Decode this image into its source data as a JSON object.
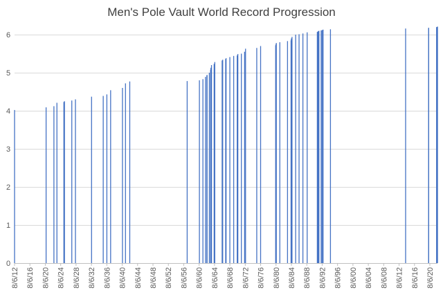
{
  "chart_data": {
    "type": "bar",
    "title": "Men's Pole Vault World Record Progression",
    "xlabel": "",
    "ylabel": "",
    "ylim": [
      0,
      6
    ],
    "yticks": [
      0,
      1,
      2,
      3,
      4,
      5,
      6
    ],
    "xlim": [
      "1912-06-08",
      "2022-06-01"
    ],
    "xticks": [
      "8/6/12",
      "8/6/16",
      "8/6/20",
      "8/6/24",
      "8/6/28",
      "8/6/32",
      "8/6/36",
      "8/6/40",
      "8/6/44",
      "8/6/48",
      "8/6/52",
      "8/6/56",
      "8/6/60",
      "8/6/64",
      "8/6/68",
      "8/6/72",
      "8/6/76",
      "8/6/80",
      "8/6/84",
      "8/6/88",
      "8/6/92",
      "8/6/96",
      "8/6/00",
      "8/6/04",
      "8/6/08",
      "8/6/12",
      "8/6/16",
      "8/6/20"
    ],
    "grid": true,
    "bar_color": "#4472C4",
    "points": [
      [
        "1912-06-08",
        4.02
      ],
      [
        "1920-08-20",
        4.09
      ],
      [
        "1922-09-02",
        4.12
      ],
      [
        "1923-06-14",
        4.21
      ],
      [
        "1925-04-04",
        4.23
      ],
      [
        "1925-06-01",
        4.25
      ],
      [
        "1927-04-27",
        4.27
      ],
      [
        "1928-04-07",
        4.3
      ],
      [
        "1932-06-16",
        4.37
      ],
      [
        "1935-06-29",
        4.39
      ],
      [
        "1936-06-08",
        4.43
      ],
      [
        "1937-06-01",
        4.54
      ],
      [
        "1940-06-29",
        4.6
      ],
      [
        "1941-04-13",
        4.72
      ],
      [
        "1942-05-23",
        4.77
      ],
      [
        "1957-04-27",
        4.78
      ],
      [
        "1960-07-02",
        4.8
      ],
      [
        "1961-06-01",
        4.83
      ],
      [
        "1962-02-01",
        4.89
      ],
      [
        "1962-06-09",
        4.93
      ],
      [
        "1962-07-01",
        4.94
      ],
      [
        "1963-02-01",
        5.0
      ],
      [
        "1963-06-01",
        5.08
      ],
      [
        "1963-07-01",
        5.13
      ],
      [
        "1963-08-24",
        5.2
      ],
      [
        "1964-05-01",
        5.23
      ],
      [
        "1964-07-01",
        5.28
      ],
      [
        "1966-06-01",
        5.32
      ],
      [
        "1966-07-23",
        5.34
      ],
      [
        "1967-05-01",
        5.36
      ],
      [
        "1967-06-10",
        5.38
      ],
      [
        "1968-06-01",
        5.41
      ],
      [
        "1969-06-01",
        5.44
      ],
      [
        "1970-05-01",
        5.45
      ],
      [
        "1970-06-01",
        5.46
      ],
      [
        "1970-07-01",
        5.49
      ],
      [
        "1971-06-01",
        5.5
      ],
      [
        "1972-04-01",
        5.55
      ],
      [
        "1972-07-01",
        5.63
      ],
      [
        "1975-06-01",
        5.65
      ],
      [
        "1976-06-01",
        5.7
      ],
      [
        "1980-05-01",
        5.72
      ],
      [
        "1980-06-01",
        5.75
      ],
      [
        "1980-07-01",
        5.78
      ],
      [
        "1981-06-01",
        5.8
      ],
      [
        "1983-06-01",
        5.83
      ],
      [
        "1984-05-01",
        5.85
      ],
      [
        "1984-06-01",
        5.9
      ],
      [
        "1984-08-01",
        5.94
      ],
      [
        "1985-07-13",
        6.0
      ],
      [
        "1986-06-01",
        6.01
      ],
      [
        "1987-06-01",
        6.03
      ],
      [
        "1988-07-10",
        6.06
      ],
      [
        "1991-03-01",
        6.07
      ],
      [
        "1991-05-01",
        6.08
      ],
      [
        "1991-06-01",
        6.09
      ],
      [
        "1991-08-01",
        6.1
      ],
      [
        "1992-03-01",
        6.11
      ],
      [
        "1992-06-01",
        6.12
      ],
      [
        "1992-09-01",
        6.13
      ],
      [
        "1994-07-31",
        6.14
      ],
      [
        "2014-02-15",
        6.16
      ],
      [
        "2020-02-08",
        6.17
      ],
      [
        "2020-02-15",
        6.18
      ],
      [
        "2022-03-07",
        6.19
      ],
      [
        "2022-03-20",
        6.2
      ],
      [
        "2022-06-01",
        6.21
      ]
    ]
  }
}
